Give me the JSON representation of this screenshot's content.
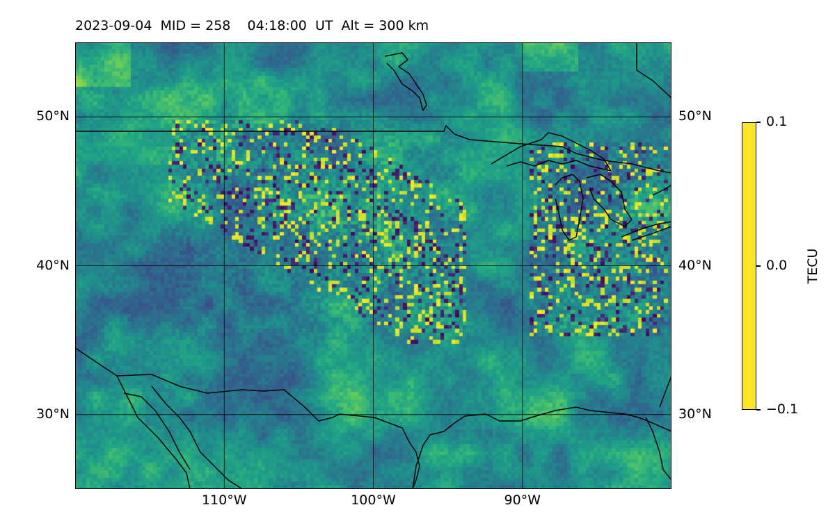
{
  "title": "2023-09-04  MID = 258    04:18:00  UT  Alt = 300 km",
  "map": {
    "lon_range": [
      -120,
      -80
    ],
    "lat_range": [
      25,
      55
    ],
    "lat_ticks": [
      {
        "value": 50,
        "label": "50°N"
      },
      {
        "value": 40,
        "label": "40°N"
      },
      {
        "value": 30,
        "label": "30°N"
      }
    ],
    "lon_ticks": [
      {
        "value": -110,
        "label": "110°W"
      },
      {
        "value": -100,
        "label": "100°W"
      },
      {
        "value": -90,
        "label": "90°W"
      }
    ],
    "gridlines": true,
    "field": "TEC perturbation",
    "overlay": "coastlines and country borders"
  },
  "colorbar": {
    "label": "TECU",
    "colormap": "viridis",
    "min": -0.1,
    "max": 0.1,
    "ticks": [
      {
        "value": 0.1,
        "label": "0.1"
      },
      {
        "value": 0.0,
        "label": "0.0"
      },
      {
        "value": -0.1,
        "label": "−0.1"
      }
    ]
  },
  "colors": {
    "viridis_low": "#440154",
    "viridis_mid": "#21918c",
    "viridis_high": "#fde725",
    "coastline": "#000000",
    "grid": "#000000"
  }
}
